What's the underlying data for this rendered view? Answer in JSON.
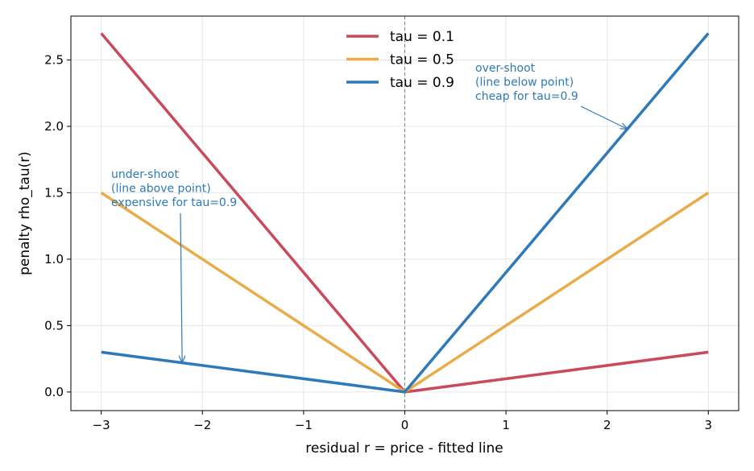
{
  "chart_data": {
    "type": "line",
    "title": "",
    "xlabel": "residual  r  =  price  -  fitted line",
    "ylabel": "penalty  rho_tau(r)",
    "xlim": [
      -3.3,
      3.3
    ],
    "ylim": [
      -0.14,
      2.83
    ],
    "x_ticks": [
      -3,
      -2,
      -1,
      0,
      1,
      2,
      3
    ],
    "x_tick_labels": [
      "−3",
      "−2",
      "−1",
      "0",
      "1",
      "2",
      "3"
    ],
    "y_ticks": [
      0.0,
      0.5,
      1.0,
      1.5,
      2.0,
      2.5
    ],
    "y_tick_labels": [
      "0.0",
      "0.5",
      "1.0",
      "1.5",
      "2.0",
      "2.5"
    ],
    "grid": true,
    "legend_position": "top-center",
    "vline_x": 0,
    "x": [
      -3,
      0,
      3
    ],
    "series": [
      {
        "name": "tau = 0.1",
        "color": "#c84a5c",
        "values": [
          2.7,
          0.0,
          0.3
        ]
      },
      {
        "name": "tau = 0.5",
        "color": "#e8ad48",
        "values": [
          1.5,
          0.0,
          1.5
        ]
      },
      {
        "name": "tau = 0.9",
        "color": "#2e7ab8",
        "values": [
          0.3,
          0.0,
          2.7
        ]
      }
    ],
    "annotations": [
      {
        "name": "annotation-undershoot",
        "lines": [
          "under-shoot",
          "(line above point)",
          "expensive for tau=0.9"
        ],
        "point": [
          -2.2,
          0.22
        ],
        "color": "#2e7ab8"
      },
      {
        "name": "annotation-overshoot",
        "lines": [
          "over-shoot",
          "(line below point)",
          "cheap for tau=0.9"
        ],
        "point": [
          2.2,
          1.98
        ],
        "color": "#2e7ab8"
      }
    ]
  }
}
